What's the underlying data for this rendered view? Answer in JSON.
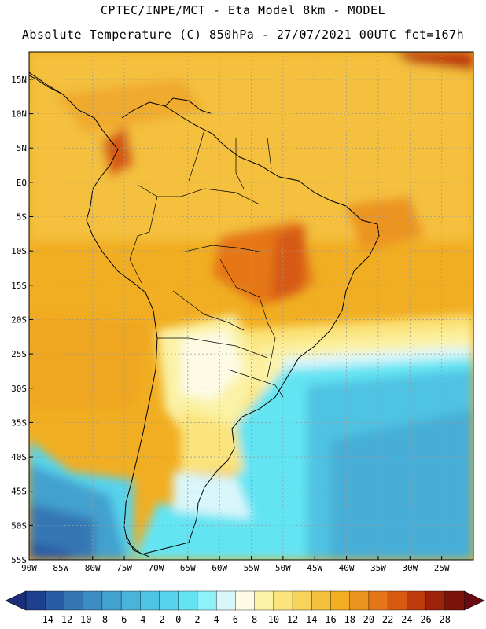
{
  "header": {
    "line1": "CPTEC/INPE/MCT -  Eta Model 8km - MODEL",
    "line2": "Absolute Temperature (C) 850hPa - 27/07/2021 00UTC fct=167h"
  },
  "map": {
    "region": "South America",
    "lon_range": [
      -90,
      -20
    ],
    "lat_range": [
      -55,
      19
    ],
    "lat_labels": [
      "15N",
      "10N",
      "5N",
      "EQ",
      "5S",
      "10S",
      "15S",
      "20S",
      "25S",
      "30S",
      "35S",
      "40S",
      "45S",
      "50S",
      "55S"
    ],
    "lat_values": [
      15,
      10,
      5,
      0,
      -5,
      -10,
      -15,
      -20,
      -25,
      -30,
      -35,
      -40,
      -45,
      -50,
      -55
    ],
    "lon_labels": [
      "90W",
      "85W",
      "80W",
      "75W",
      "70W",
      "65W",
      "60W",
      "55W",
      "50W",
      "45W",
      "40W",
      "35W",
      "30W",
      "25W"
    ],
    "lon_values": [
      -90,
      -85,
      -80,
      -75,
      -70,
      -65,
      -60,
      -55,
      -50,
      -45,
      -40,
      -35,
      -30,
      -25
    ]
  },
  "colorbar": {
    "labels": [
      "-14",
      "-12",
      "-10",
      "-8",
      "-6",
      "-4",
      "-2",
      "0",
      "2",
      "4",
      "6",
      "8",
      "10",
      "12",
      "14",
      "16",
      "18",
      "20",
      "22",
      "24",
      "26",
      "28"
    ],
    "colors": [
      "#1f3f8f",
      "#2a5ca5",
      "#3577b5",
      "#3d8dc2",
      "#43a1cf",
      "#4ab3da",
      "#4fc3e3",
      "#57d3ec",
      "#63e4f3",
      "#8ef2fb",
      "#d9f6fb",
      "#fdfbe6",
      "#fbf2a6",
      "#fbe47c",
      "#f8d35c",
      "#f4c03d",
      "#f1ae22",
      "#ec9420",
      "#e57718",
      "#d65a12",
      "#bd3b0d",
      "#9c2209",
      "#7a1408"
    ],
    "under_color": "#1c2d7a",
    "over_color": "#6a0a10"
  }
}
